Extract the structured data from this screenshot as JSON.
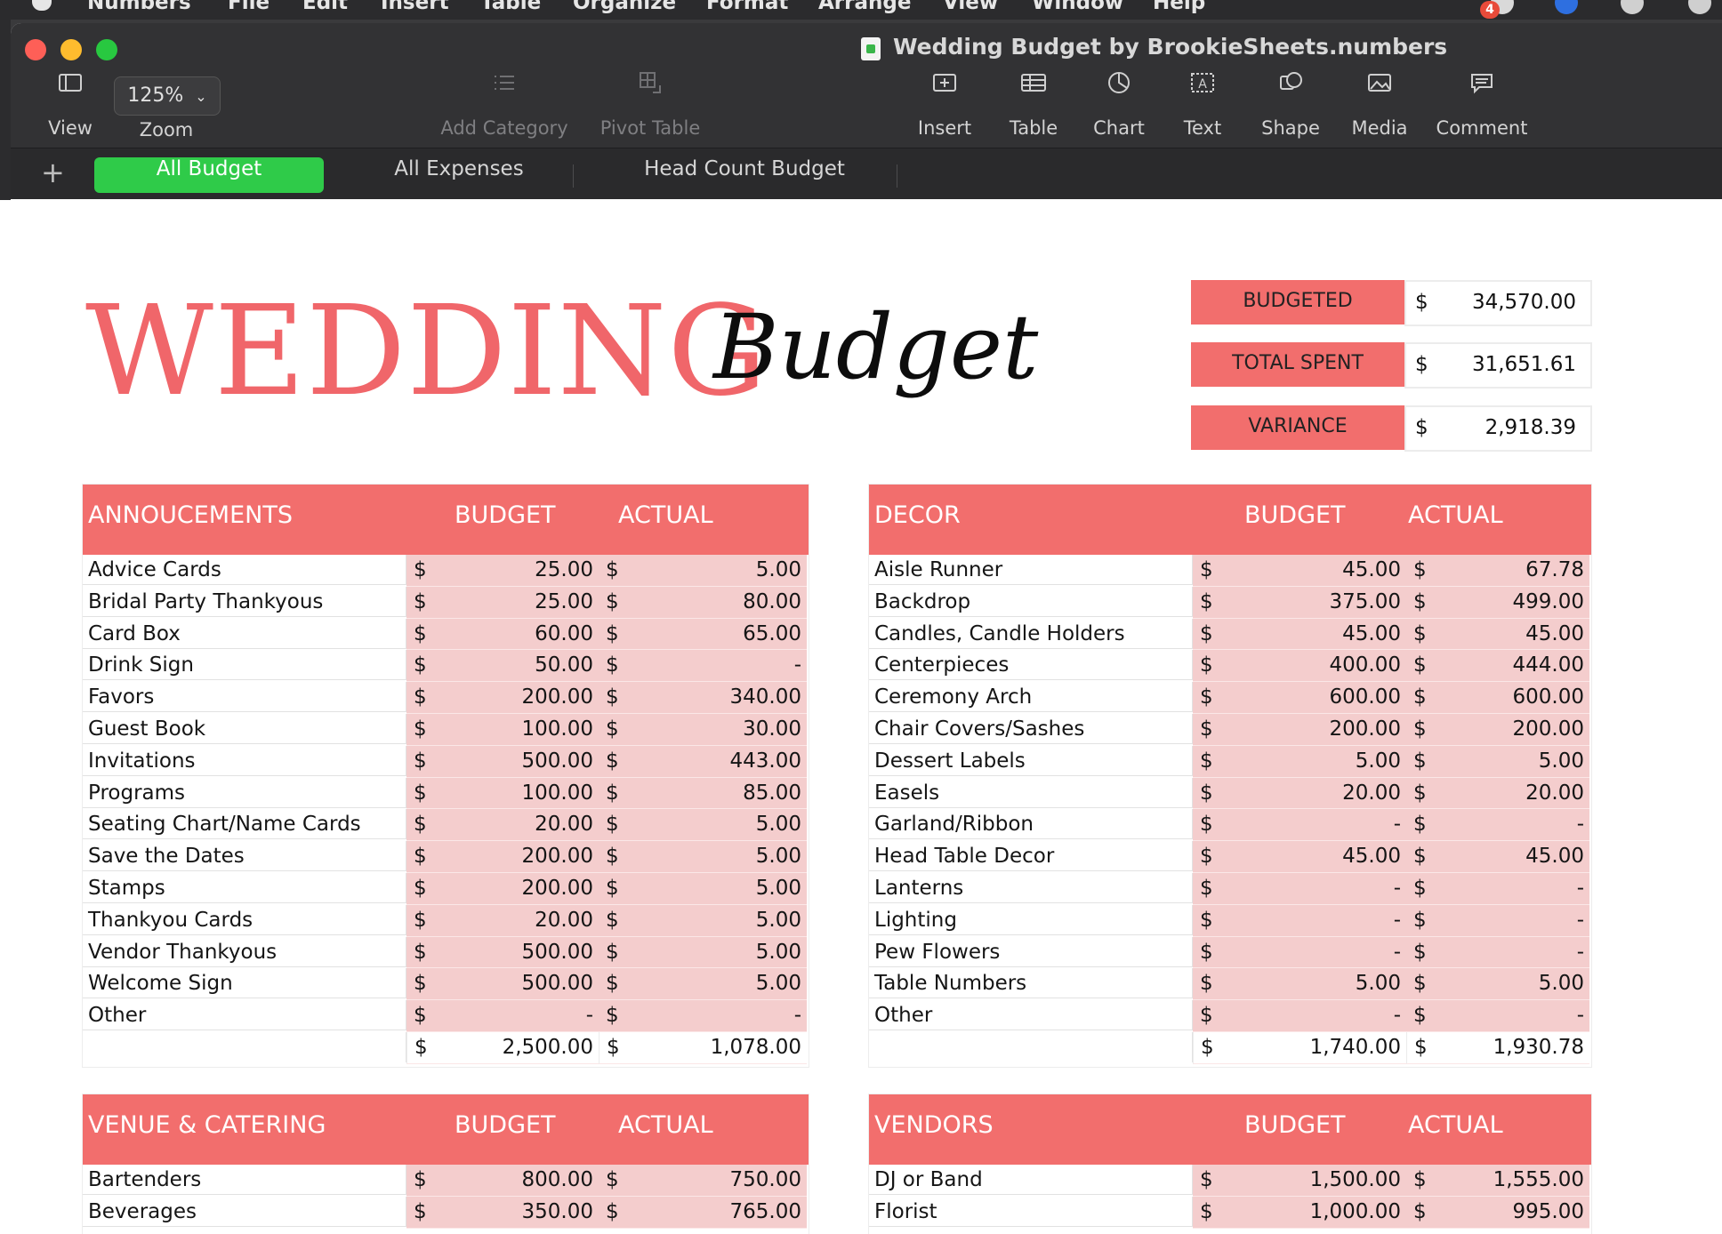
{
  "menubar": {
    "app": "Numbers",
    "items": [
      "File",
      "Edit",
      "Insert",
      "Table",
      "Organize",
      "Format",
      "Arrange",
      "View",
      "Window",
      "Help"
    ],
    "badge": "4"
  },
  "window": {
    "title": "Wedding Budget by BrookieSheets.numbers"
  },
  "toolbar": {
    "view_label": "View",
    "zoom_value": "125%",
    "zoom_label": "Zoom",
    "add_category_label": "Add Category",
    "pivot_table_label": "Pivot Table",
    "insert_label": "Insert",
    "table_label": "Table",
    "chart_label": "Chart",
    "text_label": "Text",
    "shape_label": "Shape",
    "media_label": "Media",
    "comment_label": "Comment"
  },
  "tabs": [
    {
      "label": "All Budget",
      "active": true
    },
    {
      "label": "All Expenses",
      "active": false
    },
    {
      "label": "Head Count Budget",
      "active": false
    }
  ],
  "colors": {
    "accent_green": "#2fcb49",
    "header_coral": "#f26e6d",
    "cell_pink": "#f4cdcd",
    "title_coral": "#f0666a"
  },
  "sheet": {
    "headline": "WEDDING",
    "script_word": "Budget",
    "summary": [
      {
        "label": "BUDGETED",
        "currency": "$",
        "value": "34,570.00"
      },
      {
        "label": "TOTAL SPENT",
        "currency": "$",
        "value": "31,651.61"
      },
      {
        "label": "VARIANCE",
        "currency": "$",
        "value": "2,918.39"
      }
    ],
    "categories": [
      {
        "title": "ANNOUCEMENTS",
        "budget_header": "BUDGET",
        "actual_header": "ACTUAL",
        "rows": [
          {
            "item": "Advice Cards",
            "budget": "25.00",
            "actual": "5.00"
          },
          {
            "item": "Bridal Party Thankyous",
            "budget": "25.00",
            "actual": "80.00"
          },
          {
            "item": "Card Box",
            "budget": "60.00",
            "actual": "65.00"
          },
          {
            "item": "Drink Sign",
            "budget": "50.00",
            "actual": "-"
          },
          {
            "item": "Favors",
            "budget": "200.00",
            "actual": "340.00"
          },
          {
            "item": "Guest Book",
            "budget": "100.00",
            "actual": "30.00"
          },
          {
            "item": "Invitations",
            "budget": "500.00",
            "actual": "443.00"
          },
          {
            "item": "Programs",
            "budget": "100.00",
            "actual": "85.00"
          },
          {
            "item": "Seating Chart/Name Cards",
            "budget": "20.00",
            "actual": "5.00"
          },
          {
            "item": "Save the Dates",
            "budget": "200.00",
            "actual": "5.00"
          },
          {
            "item": "Stamps",
            "budget": "200.00",
            "actual": "5.00"
          },
          {
            "item": "Thankyou Cards",
            "budget": "20.00",
            "actual": "5.00"
          },
          {
            "item": "Vendor Thankyous",
            "budget": "500.00",
            "actual": "5.00"
          },
          {
            "item": "Welcome Sign",
            "budget": "500.00",
            "actual": "5.00"
          },
          {
            "item": "Other",
            "budget": "-",
            "actual": "-"
          }
        ],
        "total": {
          "budget": "2,500.00",
          "actual": "1,078.00"
        }
      },
      {
        "title": "DECOR",
        "budget_header": "BUDGET",
        "actual_header": "ACTUAL",
        "rows": [
          {
            "item": "Aisle Runner",
            "budget": "45.00",
            "actual": "67.78"
          },
          {
            "item": "Backdrop",
            "budget": "375.00",
            "actual": "499.00"
          },
          {
            "item": "Candles, Candle Holders",
            "budget": "45.00",
            "actual": "45.00"
          },
          {
            "item": "Centerpieces",
            "budget": "400.00",
            "actual": "444.00"
          },
          {
            "item": "Ceremony Arch",
            "budget": "600.00",
            "actual": "600.00"
          },
          {
            "item": "Chair Covers/Sashes",
            "budget": "200.00",
            "actual": "200.00"
          },
          {
            "item": "Dessert Labels",
            "budget": "5.00",
            "actual": "5.00"
          },
          {
            "item": "Easels",
            "budget": "20.00",
            "actual": "20.00"
          },
          {
            "item": "Garland/Ribbon",
            "budget": "-",
            "actual": "-"
          },
          {
            "item": "Head Table Decor",
            "budget": "45.00",
            "actual": "45.00"
          },
          {
            "item": "Lanterns",
            "budget": "-",
            "actual": "-"
          },
          {
            "item": "Lighting",
            "budget": "-",
            "actual": "-"
          },
          {
            "item": "Pew Flowers",
            "budget": "-",
            "actual": "-"
          },
          {
            "item": "Table Numbers",
            "budget": "5.00",
            "actual": "5.00"
          },
          {
            "item": "Other",
            "budget": "-",
            "actual": "-"
          }
        ],
        "total": {
          "budget": "1,740.00",
          "actual": "1,930.78"
        }
      },
      {
        "title": "VENUE & CATERING",
        "budget_header": "BUDGET",
        "actual_header": "ACTUAL",
        "rows": [
          {
            "item": "Bartenders",
            "budget": "800.00",
            "actual": "750.00"
          },
          {
            "item": "Beverages",
            "budget": "350.00",
            "actual": "765.00"
          }
        ]
      },
      {
        "title": "VENDORS",
        "budget_header": "BUDGET",
        "actual_header": "ACTUAL",
        "rows": [
          {
            "item": "DJ or Band",
            "budget": "1,500.00",
            "actual": "1,555.00"
          },
          {
            "item": "Florist",
            "budget": "1,000.00",
            "actual": "995.00"
          }
        ]
      }
    ],
    "currency_symbol": "$"
  }
}
